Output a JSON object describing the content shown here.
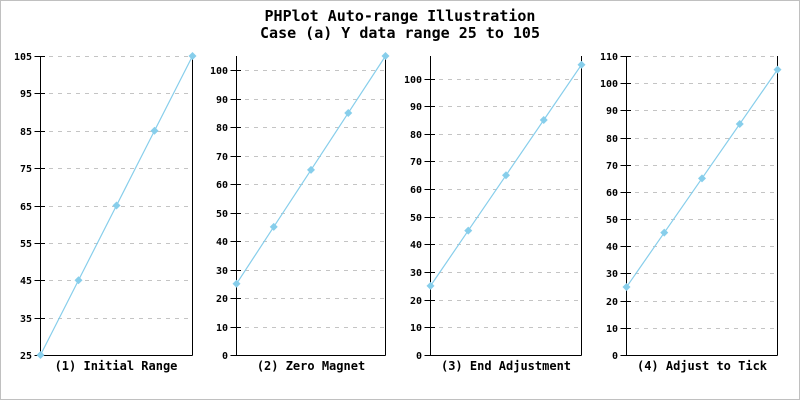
{
  "titles": {
    "line1": "PHPlot Auto-range Illustration",
    "line2": "Case (a) Y data range 25 to 105"
  },
  "colors": {
    "line": "#87CEEB",
    "marker": "#87CEEB",
    "grid": "#C4C4C4",
    "axis": "#000000",
    "text": "#000000",
    "frame_border": "#C0C0C0",
    "background": "#FFFFFF"
  },
  "chart_data": [
    {
      "type": "line",
      "title": "(1) Initial Range",
      "x": [
        1,
        2,
        3,
        4,
        5
      ],
      "values": [
        25,
        45,
        65,
        85,
        105
      ],
      "ylim": [
        25,
        105
      ],
      "yticks": [
        25,
        35,
        45,
        55,
        65,
        75,
        85,
        95,
        105
      ],
      "marker": "diamond",
      "grid": "horizontal-dashed",
      "legend": "none"
    },
    {
      "type": "line",
      "title": "(2) Zero Magnet",
      "x": [
        1,
        2,
        3,
        4,
        5
      ],
      "values": [
        25,
        45,
        65,
        85,
        105
      ],
      "ylim": [
        0,
        105
      ],
      "yticks": [
        0,
        10,
        20,
        30,
        40,
        50,
        60,
        70,
        80,
        90,
        100
      ],
      "marker": "diamond",
      "grid": "horizontal-dashed",
      "legend": "none"
    },
    {
      "type": "line",
      "title": "(3) End Adjustment",
      "x": [
        1,
        2,
        3,
        4,
        5
      ],
      "values": [
        25,
        45,
        65,
        85,
        105
      ],
      "ylim": [
        0,
        108.15
      ],
      "yticks": [
        0,
        10,
        20,
        30,
        40,
        50,
        60,
        70,
        80,
        90,
        100
      ],
      "marker": "diamond",
      "grid": "horizontal-dashed",
      "legend": "none"
    },
    {
      "type": "line",
      "title": "(4) Adjust to Tick",
      "x": [
        1,
        2,
        3,
        4,
        5
      ],
      "values": [
        25,
        45,
        65,
        85,
        105
      ],
      "ylim": [
        0,
        110
      ],
      "yticks": [
        0,
        10,
        20,
        30,
        40,
        50,
        60,
        70,
        80,
        90,
        100,
        110
      ],
      "marker": "diamond",
      "grid": "horizontal-dashed",
      "legend": "none"
    }
  ]
}
